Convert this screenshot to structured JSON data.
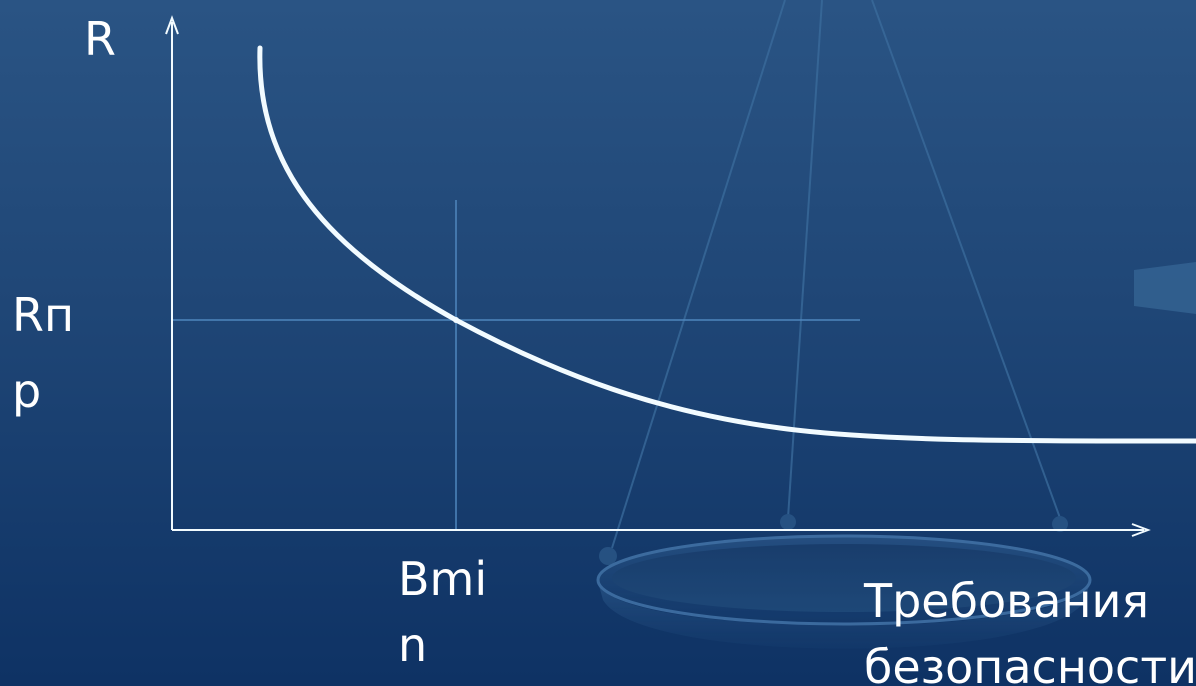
{
  "diagram": {
    "y_axis_label": "R",
    "y_marker_label_line1": "Rп",
    "y_marker_label_line2": "р",
    "x_marker_label_line1": "Bmi",
    "x_marker_label_line2": "n",
    "x_axis_label_line1": "Требования",
    "x_axis_label_line2": "безопасности"
  },
  "colors": {
    "background_top": "#2a5484",
    "background_bottom": "#0e3264",
    "curve": "#f2fbff",
    "axes": "#f2fbff",
    "guide_lines": "#4f86bd",
    "scale_graphic": "#3c6e9e"
  },
  "icons": {
    "decoration": "balance-scale-icon"
  }
}
